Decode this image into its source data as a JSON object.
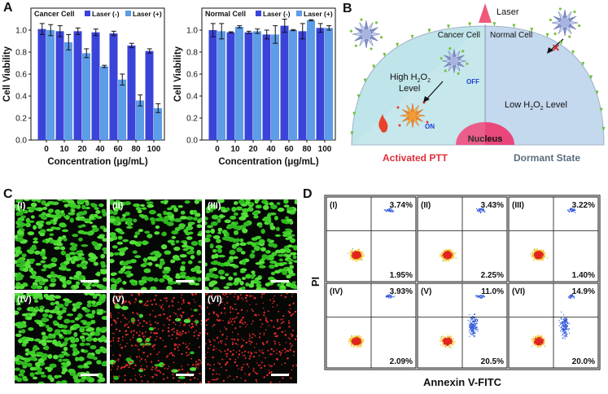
{
  "panel_labels": {
    "a": "A",
    "b": "B",
    "c": "C",
    "d": "D"
  },
  "colors": {
    "laser_off": "#3a44d8",
    "laser_on": "#5d9ce6",
    "cancer_bg": "#bfe4ea",
    "normal_bg": "#c4d8ee",
    "nucleus": "#e9477b",
    "ptt_red": "#e0303a",
    "dormant": "#5a6d7e",
    "laser": "#f05a7a"
  },
  "chart_data": [
    {
      "type": "bar",
      "title": "Cancer Cell",
      "categories": [
        "0",
        "10",
        "20",
        "40",
        "60",
        "80",
        "100"
      ],
      "series": [
        {
          "name": "Laser (-)",
          "values": [
            1.01,
            0.99,
            0.99,
            0.98,
            0.97,
            0.86,
            0.81
          ],
          "errors": [
            0.05,
            0.05,
            0.03,
            0.03,
            0.02,
            0.02,
            0.02
          ]
        },
        {
          "name": "Laser (+)",
          "values": [
            1.0,
            0.89,
            0.79,
            0.67,
            0.55,
            0.36,
            0.29
          ],
          "errors": [
            0.05,
            0.07,
            0.04,
            0.01,
            0.05,
            0.05,
            0.04
          ]
        }
      ],
      "xlabel": "Concentration (μg/mL)",
      "ylabel": "Cell Viability",
      "ylim": [
        0,
        1.2
      ],
      "yticks": [
        "0.0",
        "0.2",
        "0.4",
        "0.6",
        "0.8",
        "1.0"
      ],
      "legend": "top-right"
    },
    {
      "type": "bar",
      "title": "Normal Cell",
      "categories": [
        "0",
        "10",
        "20",
        "40",
        "60",
        "80",
        "100"
      ],
      "series": [
        {
          "name": "Laser (-)",
          "values": [
            1.0,
            0.98,
            0.98,
            0.96,
            1.04,
            0.99,
            1.02
          ],
          "errors": [
            0.06,
            0.005,
            0.01,
            0.04,
            0.06,
            0.07,
            0.04
          ]
        },
        {
          "name": "Laser (+)",
          "values": [
            0.99,
            1.03,
            0.99,
            0.96,
            1.0,
            1.09,
            1.02
          ],
          "errors": [
            0.07,
            0.01,
            0.02,
            0.08,
            0.005,
            0.005,
            0.02
          ]
        }
      ],
      "xlabel": "Concentration (μg/mL)",
      "ylabel": "Cell Viability",
      "ylim": [
        0,
        1.2
      ],
      "yticks": [
        "0.0",
        "0.2",
        "0.4",
        "0.6",
        "0.8",
        "1.0"
      ],
      "legend": "top-right"
    }
  ],
  "scheme": {
    "laser_label": "Laser",
    "cancer_label": "Cancer Cell",
    "normal_label": "Normal Cell",
    "high_h2o2": [
      "High H",
      "2",
      "O",
      "2"
    ],
    "level_word": "Level",
    "low_h2o2": [
      "Low H",
      "2",
      "O",
      "2",
      " Level"
    ],
    "off_label": "OFF",
    "on_label": "ON",
    "nucleus_label": "Nucleus",
    "activated_label": "Activated PTT",
    "dormant_label": "Dormant State"
  },
  "micrographs": {
    "labels": [
      "(I)",
      "(II)",
      "(III)",
      "(IV)",
      "(V)",
      "(VI)"
    ],
    "density": [
      1.0,
      0.75,
      0.9,
      1.0,
      0.08,
      0.0
    ]
  },
  "flow_cytometry": {
    "x_axis_label": "Annexin V-FITC",
    "y_axis_label": "PI",
    "panels": [
      {
        "label": "(I)",
        "upper_right": "3.74%",
        "lower_right": "1.95%"
      },
      {
        "label": "(II)",
        "upper_right": "3.43%",
        "lower_right": "2.25%"
      },
      {
        "label": "(III)",
        "upper_right": "3.22%",
        "lower_right": "1.40%"
      },
      {
        "label": "(IV)",
        "upper_right": "3.93%",
        "lower_right": "2.09%"
      },
      {
        "label": "(V)",
        "upper_right": "11.0%",
        "lower_right": "20.5%"
      },
      {
        "label": "(VI)",
        "upper_right": "14.9%",
        "lower_right": "20.0%"
      }
    ]
  }
}
